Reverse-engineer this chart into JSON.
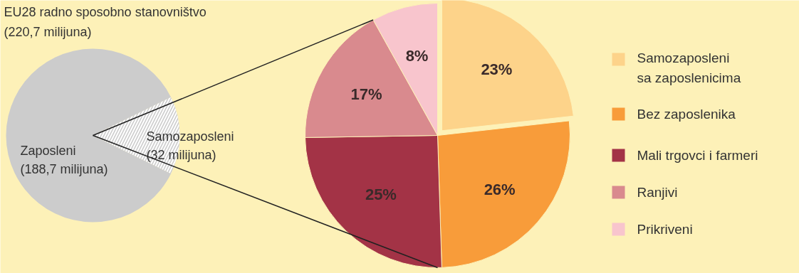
{
  "chart_data": [
    {
      "type": "pie",
      "title": "EU28 radno sposobno stanovništvo\n(220,7 milijuna)",
      "categories": [
        "Zaposleni",
        "Samozaposleni"
      ],
      "values": [
        188.7,
        32
      ],
      "value_labels": [
        "(188,7 milijuna)",
        "(32 milijuna)"
      ],
      "colors": [
        "#cccccc",
        "#cccccc"
      ]
    },
    {
      "type": "pie",
      "categories": [
        "Samozaposleni\nsa zaposlenicima",
        "Bez zaposlenika",
        "Mali trgovci i farmeri",
        "Ranjivi",
        "Prikriveni"
      ],
      "values": [
        23,
        26,
        25,
        17,
        8
      ],
      "value_labels": [
        "23%",
        "26%",
        "25%",
        "17%",
        "8%"
      ],
      "colors": [
        "#fdd38a",
        "#f89c3a",
        "#a33346",
        "#d98a8e",
        "#f8c5cd"
      ],
      "legend": "right"
    }
  ]
}
